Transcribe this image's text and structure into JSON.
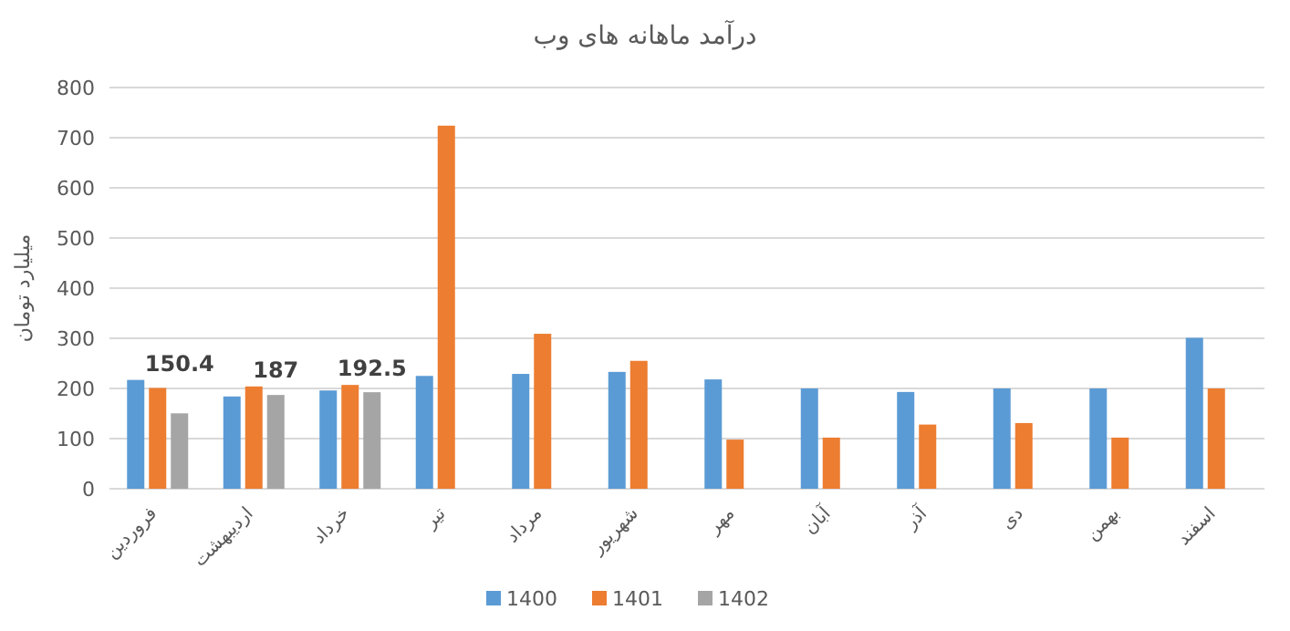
{
  "chart_data": {
    "type": "bar",
    "title": "درآمد ماهانه های وب",
    "ylabel": "میلیارد تومان",
    "categories": [
      "فروردین",
      "اردیبهشت",
      "خرداد",
      "تیر",
      "مرداد",
      "شهریور",
      "مهر",
      "آبان",
      "آذر",
      "دی",
      "بهمن",
      "اسفند"
    ],
    "series": [
      {
        "name": "1400",
        "color": "#5b9bd5",
        "values": [
          217,
          184,
          196,
          225,
          229,
          233,
          218,
          200,
          193,
          200,
          200,
          301
        ]
      },
      {
        "name": "1401",
        "color": "#ed7d31",
        "values": [
          201,
          204,
          207,
          724,
          309,
          255,
          98,
          102,
          128,
          131,
          102,
          200
        ]
      },
      {
        "name": "1402",
        "color": "#a5a5a5",
        "values": [
          150.4,
          187,
          192.5,
          null,
          null,
          null,
          null,
          null,
          null,
          null,
          null,
          null
        ],
        "value_labels": [
          "150.4",
          "187",
          "192.5",
          null,
          null,
          null,
          null,
          null,
          null,
          null,
          null,
          null
        ]
      }
    ],
    "ylim": [
      0,
      800
    ],
    "yticks": [
      0,
      100,
      200,
      300,
      400,
      500,
      600,
      700,
      800
    ],
    "grid": "y",
    "legend": "bottom"
  }
}
